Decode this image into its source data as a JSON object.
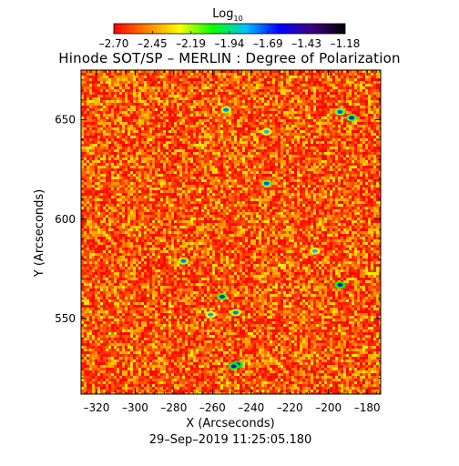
{
  "chart_data": {
    "type": "heatmap",
    "title": "Hinode SOT/SP – MERLIN : Degree of Polarization",
    "xlabel": "X (Arcseconds)",
    "ylabel": "Y (Arcseconds)",
    "timestamp": "29–Sep–2019 11:25:05.180",
    "xlim": [
      -328,
      -173
    ],
    "ylim": [
      512,
      675
    ],
    "xticks": [
      -320,
      -300,
      -280,
      -260,
      -240,
      -220,
      -200,
      -180
    ],
    "yticks": [
      550,
      600,
      650
    ],
    "xtick_labels": [
      "–320",
      "–300",
      "–280",
      "–260",
      "–240",
      "–220",
      "–200",
      "–180"
    ],
    "ytick_labels": [
      "550",
      "600",
      "650"
    ],
    "colorbar": {
      "label_base": "Log",
      "label_sub": "10",
      "min": -2.7,
      "max": -1.18,
      "tick_labels": [
        "–2.70",
        "–2.45",
        "–2.19",
        "–1.94",
        "–1.69",
        "–1.43",
        "–1.18"
      ],
      "colors": [
        "#ff0000",
        "#ff8000",
        "#ffff00",
        "#00ff00",
        "#00c0ff",
        "#0000ff",
        "#400080",
        "#000000"
      ]
    },
    "field_summary": {
      "dominant_range": [
        -2.7,
        -2.3
      ],
      "patches": [
        {
          "x": -253,
          "y": 655,
          "value": -1.75
        },
        {
          "x": -194,
          "y": 654,
          "value": -1.7
        },
        {
          "x": -188,
          "y": 651,
          "value": -1.65
        },
        {
          "x": -232,
          "y": 644,
          "value": -1.85
        },
        {
          "x": -232,
          "y": 618,
          "value": -1.7
        },
        {
          "x": -207,
          "y": 584,
          "value": -1.85
        },
        {
          "x": -275,
          "y": 579,
          "value": -1.75
        },
        {
          "x": -194,
          "y": 567,
          "value": -1.6
        },
        {
          "x": -255,
          "y": 561,
          "value": -1.65
        },
        {
          "x": -248,
          "y": 553,
          "value": -1.75
        },
        {
          "x": -261,
          "y": 552,
          "value": -1.8
        },
        {
          "x": -247,
          "y": 527,
          "value": -1.55
        },
        {
          "x": -249,
          "y": 526,
          "value": -1.6
        }
      ]
    }
  }
}
